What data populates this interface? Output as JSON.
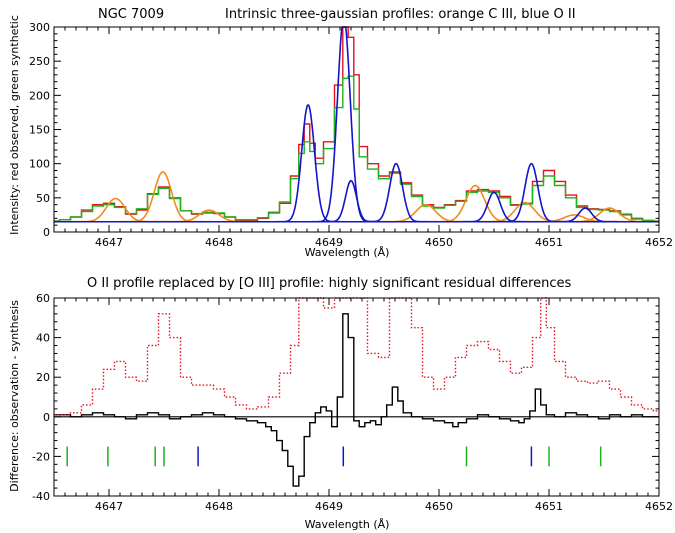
{
  "chart_data": [
    {
      "type": "line",
      "title_left": "NGC 7009",
      "title": "Intrinsic three-gaussian profiles: orange C III, blue O II",
      "xlabel": "Wavelength (Å)",
      "ylabel": "Intensity: red observed, green synthetic",
      "xlim": [
        4646.5,
        4652.0
      ],
      "ylim": [
        0,
        300
      ],
      "xticks": [
        "4647",
        "4648",
        "4649",
        "4650",
        "4651",
        "4652"
      ],
      "yticks": [
        "0",
        "50",
        "100",
        "150",
        "200",
        "250",
        "300"
      ],
      "grid": false,
      "colors": {
        "observed": "#e8101c",
        "synthetic": "#1eb31e",
        "c_iii": "#f08c1e",
        "o_ii": "#1414c8"
      },
      "series": [
        {
          "key": "observed",
          "style": "step",
          "x": [
            4646.5,
            4646.6,
            4646.7,
            4646.8,
            4646.9,
            4647.0,
            4647.1,
            4647.2,
            4647.3,
            4647.4,
            4647.5,
            4647.6,
            4647.7,
            4647.8,
            4647.9,
            4648.0,
            4648.1,
            4648.2,
            4648.3,
            4648.4,
            4648.5,
            4648.6,
            4648.7,
            4648.75,
            4648.8,
            4648.85,
            4648.9,
            4649.0,
            4649.1,
            4649.15,
            4649.2,
            4649.25,
            4649.3,
            4649.4,
            4649.5,
            4649.6,
            4649.7,
            4649.8,
            4649.9,
            4650.0,
            4650.1,
            4650.2,
            4650.3,
            4650.4,
            4650.5,
            4650.6,
            4650.7,
            4650.8,
            4650.9,
            4651.0,
            4651.1,
            4651.2,
            4651.3,
            4651.4,
            4651.5,
            4651.6,
            4651.7,
            4651.8,
            4651.9,
            4652.0
          ],
          "y": [
            16,
            18,
            22,
            32,
            40,
            42,
            37,
            26,
            32,
            56,
            66,
            50,
            31,
            26,
            28,
            27,
            22,
            17,
            17,
            20,
            28,
            42,
            82,
            128,
            158,
            130,
            108,
            132,
            215,
            300,
            285,
            230,
            125,
            100,
            82,
            88,
            72,
            54,
            40,
            36,
            40,
            46,
            60,
            62,
            60,
            52,
            40,
            42,
            74,
            90,
            74,
            54,
            38,
            34,
            33,
            31,
            26,
            20,
            17,
            16
          ]
        },
        {
          "key": "synthetic",
          "style": "step",
          "x": [
            4646.5,
            4646.6,
            4646.7,
            4646.8,
            4646.9,
            4647.0,
            4647.1,
            4647.2,
            4647.3,
            4647.4,
            4647.5,
            4647.6,
            4647.7,
            4647.8,
            4647.9,
            4648.0,
            4648.1,
            4648.2,
            4648.3,
            4648.4,
            4648.5,
            4648.6,
            4648.7,
            4648.75,
            4648.8,
            4648.85,
            4648.9,
            4649.0,
            4649.1,
            4649.15,
            4649.2,
            4649.25,
            4649.3,
            4649.4,
            4649.5,
            4649.6,
            4649.7,
            4649.8,
            4649.9,
            4650.0,
            4650.1,
            4650.2,
            4650.3,
            4650.4,
            4650.5,
            4650.6,
            4650.7,
            4650.8,
            4650.9,
            4651.0,
            4651.1,
            4651.2,
            4651.3,
            4651.4,
            4651.5,
            4651.6,
            4651.7,
            4651.8,
            4651.9,
            4652.0
          ],
          "y": [
            16,
            18,
            22,
            30,
            38,
            40,
            36,
            27,
            34,
            55,
            64,
            49,
            31,
            27,
            29,
            28,
            22,
            18,
            18,
            21,
            29,
            44,
            78,
            115,
            132,
            118,
            100,
            122,
            182,
            225,
            228,
            180,
            110,
            92,
            78,
            86,
            70,
            52,
            38,
            35,
            39,
            45,
            58,
            60,
            58,
            50,
            39,
            41,
            68,
            82,
            68,
            50,
            36,
            33,
            32,
            30,
            25,
            19,
            17,
            16
          ]
        },
        {
          "key": "c_iii",
          "style": "gaussian",
          "baseline": 15,
          "components": [
            {
              "center": 4647.06,
              "amp": 34,
              "sigma": 0.085
            },
            {
              "center": 4647.49,
              "amp": 73,
              "sigma": 0.078
            },
            {
              "center": 4647.91,
              "amp": 17,
              "sigma": 0.09
            },
            {
              "center": 4649.88,
              "amp": 25,
              "sigma": 0.09
            },
            {
              "center": 4650.33,
              "amp": 53,
              "sigma": 0.085
            },
            {
              "center": 4650.78,
              "amp": 28,
              "sigma": 0.09
            },
            {
              "center": 4651.23,
              "amp": 10,
              "sigma": 0.09
            },
            {
              "center": 4651.55,
              "amp": 20,
              "sigma": 0.09
            }
          ]
        },
        {
          "key": "o_ii",
          "style": "gaussian",
          "baseline": 15,
          "components": [
            {
              "center": 4648.81,
              "amp": 171,
              "sigma": 0.058
            },
            {
              "center": 4649.135,
              "amp": 298,
              "sigma": 0.058
            },
            {
              "center": 4649.2,
              "amp": 60,
              "sigma": 0.05
            },
            {
              "center": 4649.61,
              "amp": 85,
              "sigma": 0.058
            },
            {
              "center": 4650.5,
              "amp": 43,
              "sigma": 0.058
            },
            {
              "center": 4650.84,
              "amp": 85,
              "sigma": 0.058
            },
            {
              "center": 4651.33,
              "amp": 20,
              "sigma": 0.058
            }
          ]
        }
      ]
    },
    {
      "type": "line",
      "title": "O II profile replaced by [O III] profile: highly significant residual differences",
      "xlabel": "Wavelength (Å)",
      "ylabel": "Difference: observation - synthesis",
      "xlim": [
        4646.5,
        4652.0
      ],
      "ylim": [
        -40,
        60
      ],
      "xticks": [
        "4647",
        "4648",
        "4649",
        "4650",
        "4651",
        "4652"
      ],
      "yticks": [
        "-40",
        "-20",
        "0",
        "20",
        "40",
        "60"
      ],
      "grid": false,
      "colors": {
        "residual": "#000000",
        "scaled_observed": "#e8101c",
        "zero": "#000000",
        "marker_blue": "#1414c8",
        "marker_green": "#1eb31e"
      },
      "series": [
        {
          "key": "residual",
          "style": "step",
          "x": [
            4646.5,
            4646.6,
            4646.7,
            4646.8,
            4646.9,
            4647.0,
            4647.1,
            4647.2,
            4647.3,
            4647.4,
            4647.5,
            4647.6,
            4647.7,
            4647.8,
            4647.9,
            4648.0,
            4648.1,
            4648.2,
            4648.3,
            4648.4,
            4648.45,
            4648.5,
            4648.55,
            4648.6,
            4648.65,
            4648.7,
            4648.75,
            4648.8,
            4648.85,
            4648.9,
            4648.95,
            4649.0,
            4649.05,
            4649.1,
            4649.15,
            4649.2,
            4649.25,
            4649.3,
            4649.35,
            4649.4,
            4649.45,
            4649.5,
            4649.55,
            4649.6,
            4649.65,
            4649.7,
            4649.8,
            4649.9,
            4650.0,
            4650.1,
            4650.15,
            4650.2,
            4650.3,
            4650.4,
            4650.5,
            4650.6,
            4650.7,
            4650.75,
            4650.8,
            4650.85,
            4650.9,
            4650.95,
            4651.0,
            4651.1,
            4651.2,
            4651.3,
            4651.4,
            4651.5,
            4651.6,
            4651.7,
            4651.8,
            4651.9,
            4652.0
          ],
          "y": [
            1,
            1,
            0,
            1,
            2,
            1,
            0,
            -1,
            1,
            2,
            1,
            -1,
            0,
            1,
            2,
            1,
            0,
            -1,
            -2,
            -3,
            -5,
            -7,
            -12,
            -17,
            -25,
            -35,
            -30,
            -10,
            -3,
            2,
            5,
            3,
            -5,
            10,
            52,
            40,
            -2,
            -5,
            -3,
            -2,
            -4,
            0,
            6,
            15,
            8,
            2,
            0,
            -1,
            -2,
            -3,
            -5,
            -3,
            -1,
            1,
            0,
            -1,
            -2,
            -3,
            -1,
            3,
            14,
            6,
            1,
            0,
            2,
            1,
            0,
            -1,
            1,
            0,
            1,
            0,
            0
          ]
        },
        {
          "key": "scaled_observed",
          "style": "dotted",
          "x": [
            4646.5,
            4646.6,
            4646.7,
            4646.8,
            4646.9,
            4647.0,
            4647.1,
            4647.2,
            4647.3,
            4647.4,
            4647.5,
            4647.6,
            4647.7,
            4647.8,
            4647.9,
            4648.0,
            4648.1,
            4648.2,
            4648.3,
            4648.4,
            4648.5,
            4648.6,
            4648.7,
            4648.75,
            4648.8,
            4648.9,
            4649.0,
            4649.1,
            4649.2,
            4649.3,
            4649.4,
            4649.5,
            4649.6,
            4649.7,
            4649.8,
            4649.9,
            4650.0,
            4650.1,
            4650.2,
            4650.3,
            4650.4,
            4650.5,
            4650.6,
            4650.7,
            4650.8,
            4650.9,
            4650.95,
            4651.0,
            4651.1,
            4651.2,
            4651.3,
            4651.4,
            4651.5,
            4651.6,
            4651.7,
            4651.8,
            4651.9,
            4652.0
          ],
          "y": [
            1,
            1,
            2,
            6,
            14,
            24,
            28,
            20,
            18,
            36,
            52,
            40,
            20,
            16,
            16,
            14,
            10,
            6,
            4,
            5,
            10,
            22,
            36,
            62,
            70,
            62,
            55,
            62,
            62,
            62,
            32,
            30,
            62,
            62,
            45,
            20,
            14,
            20,
            30,
            36,
            38,
            34,
            28,
            22,
            25,
            40,
            62,
            45,
            28,
            20,
            18,
            17,
            18,
            14,
            10,
            6,
            4,
            3
          ]
        }
      ],
      "markers": [
        {
          "x": 4646.62,
          "color": "green"
        },
        {
          "x": 4646.99,
          "color": "green"
        },
        {
          "x": 4647.42,
          "color": "green"
        },
        {
          "x": 4647.5,
          "color": "green"
        },
        {
          "x": 4647.81,
          "color": "blue"
        },
        {
          "x": 4649.13,
          "color": "blue"
        },
        {
          "x": 4650.25,
          "color": "green"
        },
        {
          "x": 4650.84,
          "color": "blue"
        },
        {
          "x": 4651.0,
          "color": "green"
        },
        {
          "x": 4651.47,
          "color": "green"
        }
      ],
      "marker_y": [
        -15,
        -25
      ]
    }
  ]
}
